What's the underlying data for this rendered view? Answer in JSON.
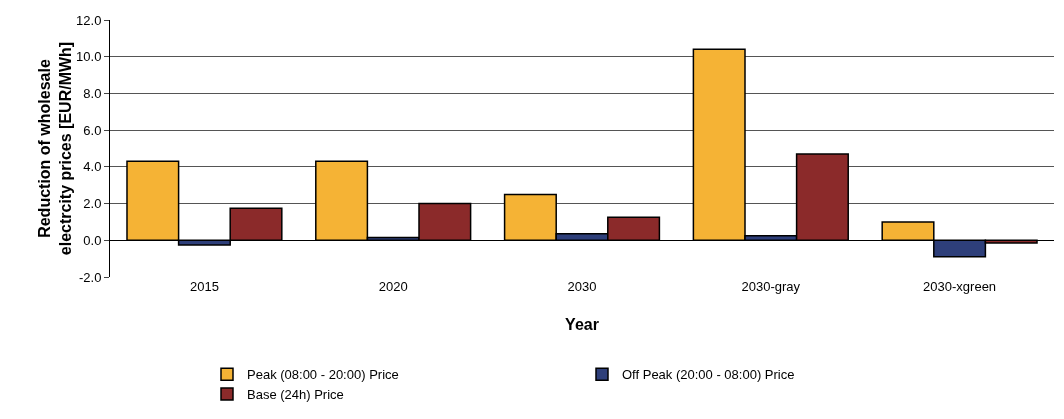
{
  "chart_data": {
    "type": "bar",
    "xlabel": "Year",
    "ylabel": "Reduction of wholesale electrcity prices [EUR/MWh]",
    "categories": [
      "2015",
      "2020",
      "2030",
      "2030-gray",
      "2030-xgreen"
    ],
    "series": [
      {
        "name": "Peak (08:00 - 20:00) Price",
        "color": "#f5b335",
        "values": [
          4.3,
          4.3,
          2.5,
          10.4,
          1.0
        ]
      },
      {
        "name": "Off Peak (20:00 - 08:00) Price",
        "color": "#2e3f7a",
        "values": [
          -0.25,
          0.15,
          0.35,
          0.25,
          -0.9
        ]
      },
      {
        "name": "Base (24h) Price",
        "color": "#8b2a2a",
        "values": [
          1.75,
          2.0,
          1.25,
          4.7,
          -0.15
        ]
      }
    ],
    "ylim": [
      -2,
      12
    ],
    "yticks": [
      {
        "value": -2,
        "label": "-2.0"
      },
      {
        "value": 0,
        "label": "0.0"
      },
      {
        "value": 2,
        "label": "2.0"
      },
      {
        "value": 4,
        "label": "4.0"
      },
      {
        "value": 6,
        "label": "6.0"
      },
      {
        "value": 8,
        "label": "8.0"
      },
      {
        "value": 10,
        "label": "10.0"
      },
      {
        "value": 12,
        "label": "12.0"
      }
    ],
    "grid": "y",
    "legend": "bottom"
  }
}
